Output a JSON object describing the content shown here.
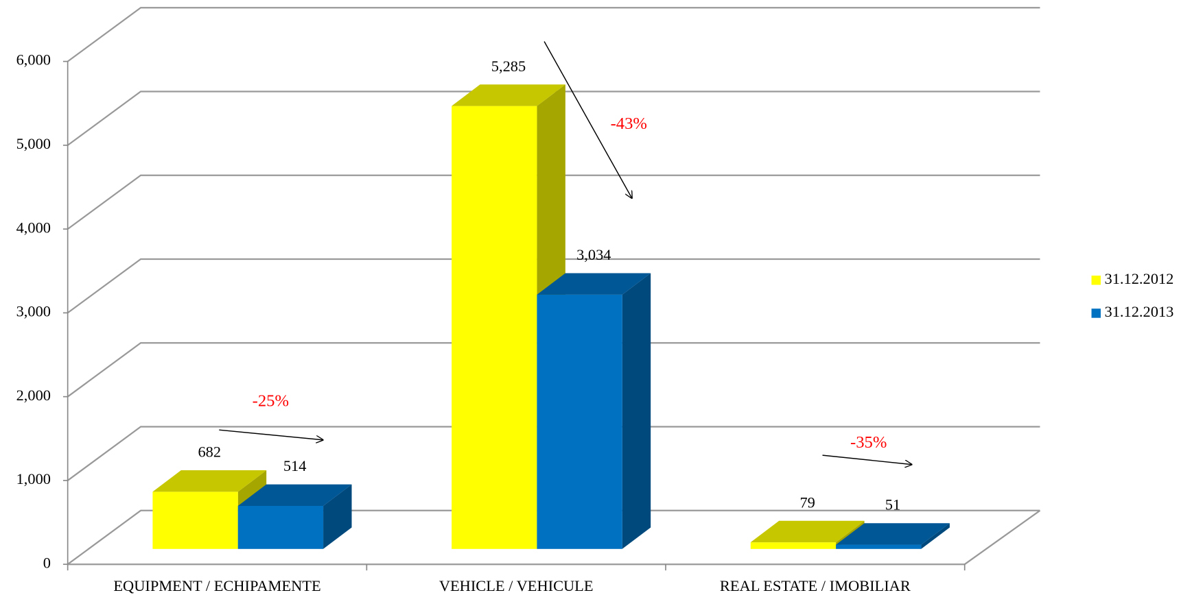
{
  "chart_data": {
    "type": "bar3d",
    "categories": [
      "EQUIPMENT / ECHIPAMENTE",
      "VEHICLE / VEHICULE",
      "REAL ESTATE / IMOBILIAR"
    ],
    "series": [
      {
        "name": "31.12.2012",
        "color": "#ffff00",
        "values": [
          682,
          5285,
          79
        ],
        "value_labels": [
          "682",
          "5,285",
          "79"
        ]
      },
      {
        "name": "31.12.2013",
        "color": "#0070c0",
        "values": [
          514,
          3034,
          51
        ],
        "value_labels": [
          "514",
          "3,034",
          "51"
        ]
      }
    ],
    "ylim": [
      0,
      6000
    ],
    "yticks": [
      0,
      {
        "value": 1000,
        "label": "1,000"
      },
      {
        "value": 2000,
        "label": "2,000"
      },
      {
        "value": 3000,
        "label": "3,000"
      },
      {
        "value": 4000,
        "label": "4,000"
      },
      {
        "value": 5000,
        "label": "5,000"
      },
      {
        "value": 6000,
        "label": "6,000"
      }
    ],
    "grid": true,
    "legend": "right",
    "annotations": [
      "-25%",
      "-43%",
      "-35%"
    ]
  }
}
